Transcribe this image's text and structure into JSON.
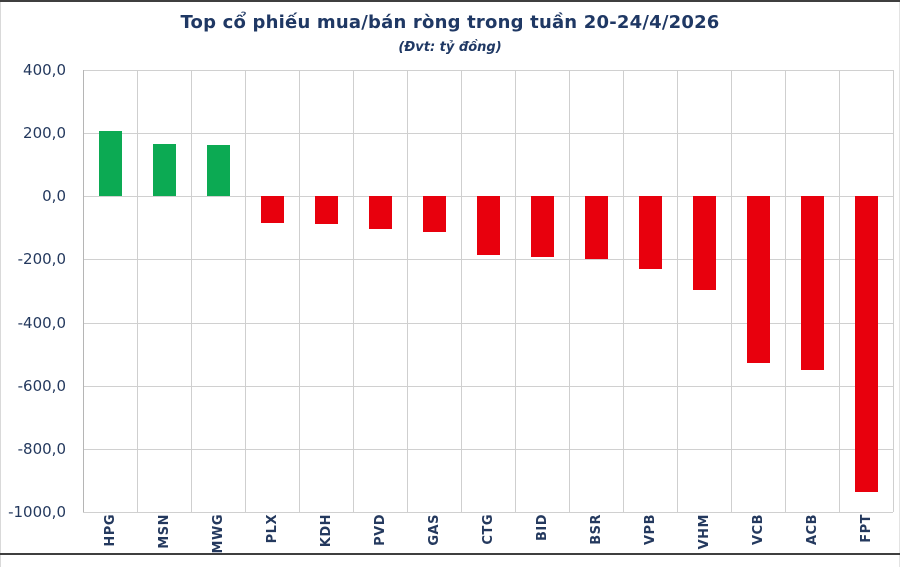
{
  "chart_data": {
    "type": "bar",
    "title": "Top cổ phiếu mua/bán ròng trong tuần 20-24/4/2026",
    "subtitle": "(Đvt: tỷ đồng)",
    "categories": [
      "HPG",
      "MSN",
      "MWG",
      "PLX",
      "KDH",
      "PVD",
      "GAS",
      "CTG",
      "BID",
      "BSR",
      "VPB",
      "VHM",
      "VCB",
      "ACB",
      "FPT"
    ],
    "values": [
      208,
      166,
      162,
      -86,
      -88,
      -104,
      -112,
      -187,
      -193,
      -198,
      -229,
      -297,
      -529,
      -549,
      -936
    ],
    "xlabel": "",
    "ylabel": "",
    "ylim": [
      -1000,
      400
    ],
    "ytick_step": 200,
    "ytick_labels": [
      "400,0",
      "200,0",
      "0,0",
      "-200,0",
      "-400,0",
      "-600,0",
      "-800,0",
      "-1000,0"
    ],
    "grid": true,
    "legend": "none",
    "colors": {
      "positive_bar": "#0caa53",
      "negative_bar": "#e8000d",
      "title_text": "#1f3864",
      "axis_text": "#24395e",
      "gridline": "#d0d0d0"
    }
  }
}
